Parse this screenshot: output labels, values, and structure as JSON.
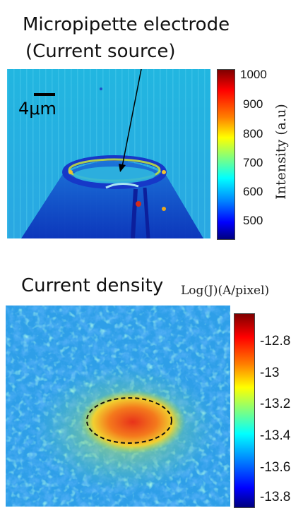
{
  "panel_top": {
    "title_line1": "Micropipette electrode",
    "title_line2": "(Current source)",
    "scale_bar_label": "4μm",
    "colorbar": {
      "label": "Intensity (a.u)",
      "ticks": [
        "1000",
        "900",
        "800",
        "700",
        "600",
        "500"
      ]
    }
  },
  "panel_bottom": {
    "title": "Current density",
    "colorbar": {
      "label": "Log(J)(A/pixel)",
      "ticks": [
        "-12.8",
        "-13",
        "-13.2",
        "-13.4",
        "-13.6",
        "-13.8"
      ]
    }
  },
  "colors": {
    "colormap_jet": [
      "#00007f",
      "#0000ff",
      "#007fff",
      "#00ffff",
      "#7fff7f",
      "#ffff00",
      "#ff7f00",
      "#ff0000",
      "#7f0000"
    ],
    "background_top": "#1fb3e0",
    "background_bottom": "#2a9fe6"
  }
}
